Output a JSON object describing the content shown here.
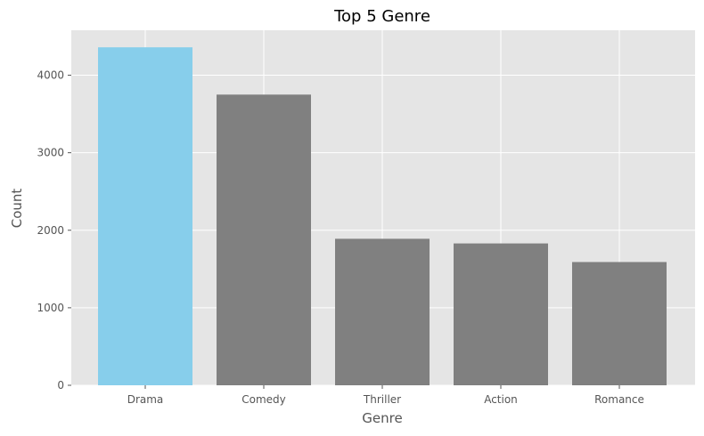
{
  "chart_data": {
    "type": "bar",
    "title": "Top 5 Genre",
    "xlabel": "Genre",
    "ylabel": "Count",
    "categories": [
      "Drama",
      "Comedy",
      "Thriller",
      "Action",
      "Romance"
    ],
    "values": [
      4360,
      3750,
      1890,
      1830,
      1590
    ],
    "ylim": [
      0,
      4580
    ],
    "yticks": [
      0,
      1000,
      2000,
      3000,
      4000
    ],
    "grid": true,
    "colors": {
      "highlight": "#87ceeb",
      "default": "#808080",
      "plot_background": "#e5e5e5",
      "grid": "#ffffff"
    }
  }
}
